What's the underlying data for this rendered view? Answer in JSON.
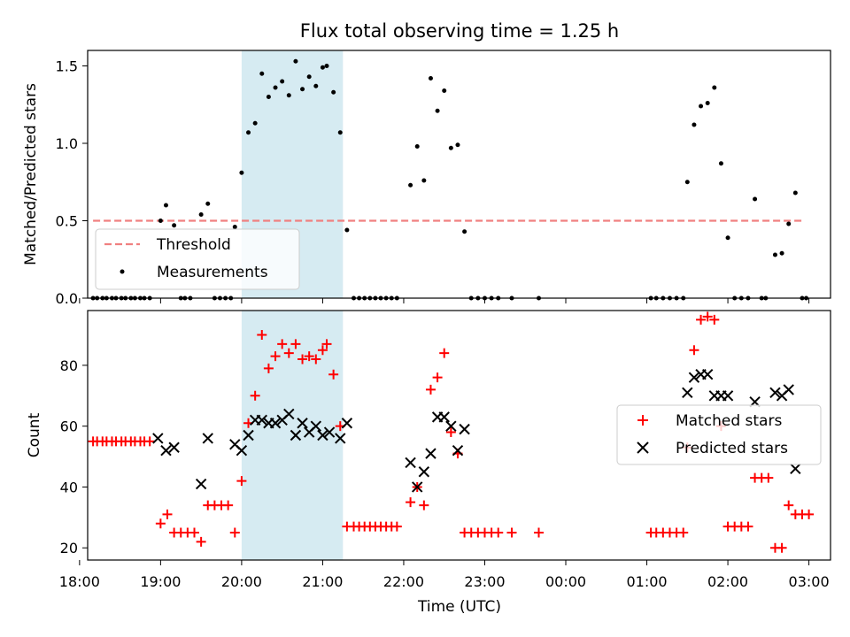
{
  "chart_data": [
    {
      "type": "scatter",
      "title": "Flux total observing time = 1.25 h",
      "ylabel": "Matched/Predicted stars",
      "xlabel": "",
      "x_unit": "time (UTC)",
      "xlim": [
        "18:06",
        "03:16"
      ],
      "ylim": [
        0,
        1.6
      ],
      "yticks": [
        "0.0",
        "0.5",
        "1.0",
        "1.5"
      ],
      "highlight_span": [
        "20:00",
        "21:15"
      ],
      "threshold": {
        "name": "Threshold",
        "value": 0.5,
        "from": "18:10",
        "to": "02:57",
        "style": "dashed",
        "color": "#f08080"
      },
      "legend": {
        "position": "lower-left"
      },
      "series": [
        {
          "name": "Measurements",
          "color": "#000000",
          "marker": "dot",
          "points": [
            [
              "18:10",
              0
            ],
            [
              "18:13",
              0
            ],
            [
              "18:17",
              0
            ],
            [
              "18:20",
              0
            ],
            [
              "18:24",
              0
            ],
            [
              "18:27",
              0
            ],
            [
              "18:31",
              0
            ],
            [
              "18:34",
              0
            ],
            [
              "18:38",
              0
            ],
            [
              "18:41",
              0
            ],
            [
              "18:45",
              0
            ],
            [
              "18:48",
              0
            ],
            [
              "18:52",
              0
            ],
            [
              "19:00",
              0.5
            ],
            [
              "19:04",
              0.6
            ],
            [
              "19:10",
              0.47
            ],
            [
              "19:15",
              0
            ],
            [
              "19:18",
              0
            ],
            [
              "19:22",
              0
            ],
            [
              "19:30",
              0.54
            ],
            [
              "19:35",
              0.61
            ],
            [
              "19:40",
              0
            ],
            [
              "19:44",
              0
            ],
            [
              "19:48",
              0
            ],
            [
              "19:52",
              0
            ],
            [
              "19:55",
              0.46
            ],
            [
              "20:00",
              0.81
            ],
            [
              "20:05",
              1.07
            ],
            [
              "20:10",
              1.13
            ],
            [
              "20:15",
              1.45
            ],
            [
              "20:20",
              1.3
            ],
            [
              "20:25",
              1.36
            ],
            [
              "20:30",
              1.4
            ],
            [
              "20:35",
              1.31
            ],
            [
              "20:40",
              1.53
            ],
            [
              "20:45",
              1.35
            ],
            [
              "20:50",
              1.43
            ],
            [
              "20:55",
              1.37
            ],
            [
              "21:00",
              1.49
            ],
            [
              "21:03",
              1.5
            ],
            [
              "21:08",
              1.33
            ],
            [
              "21:13",
              1.07
            ],
            [
              "21:18",
              0.44
            ],
            [
              "21:23",
              0
            ],
            [
              "21:27",
              0
            ],
            [
              "21:31",
              0
            ],
            [
              "21:35",
              0
            ],
            [
              "21:39",
              0
            ],
            [
              "21:43",
              0
            ],
            [
              "21:47",
              0
            ],
            [
              "21:51",
              0
            ],
            [
              "21:55",
              0
            ],
            [
              "22:05",
              0.73
            ],
            [
              "22:10",
              0.98
            ],
            [
              "22:15",
              0.76
            ],
            [
              "22:20",
              1.42
            ],
            [
              "22:25",
              1.21
            ],
            [
              "22:30",
              1.34
            ],
            [
              "22:35",
              0.97
            ],
            [
              "22:40",
              0.99
            ],
            [
              "22:45",
              0.43
            ],
            [
              "22:50",
              0
            ],
            [
              "22:55",
              0
            ],
            [
              "23:00",
              0
            ],
            [
              "23:05",
              0
            ],
            [
              "23:10",
              0
            ],
            [
              "23:20",
              0
            ],
            [
              "23:40",
              0
            ],
            [
              "01:03",
              0
            ],
            [
              "01:07",
              0
            ],
            [
              "01:12",
              0
            ],
            [
              "01:17",
              0
            ],
            [
              "01:22",
              0
            ],
            [
              "01:27",
              0
            ],
            [
              "01:30",
              0.75
            ],
            [
              "01:35",
              1.12
            ],
            [
              "01:40",
              1.24
            ],
            [
              "01:45",
              1.26
            ],
            [
              "01:50",
              1.36
            ],
            [
              "01:55",
              0.87
            ],
            [
              "02:00",
              0.39
            ],
            [
              "02:05",
              0
            ],
            [
              "02:10",
              0
            ],
            [
              "02:15",
              0
            ],
            [
              "02:20",
              0.64
            ],
            [
              "02:25",
              0
            ],
            [
              "02:28",
              0
            ],
            [
              "02:35",
              0.28
            ],
            [
              "02:40",
              0.29
            ],
            [
              "02:45",
              0.48
            ],
            [
              "02:50",
              0.68
            ],
            [
              "02:55",
              0
            ],
            [
              "02:58",
              0
            ]
          ]
        }
      ]
    },
    {
      "type": "scatter",
      "title": "",
      "ylabel": "Count",
      "xlabel": "Time (UTC)",
      "xlim": [
        "18:06",
        "03:16"
      ],
      "ylim": [
        16,
        98
      ],
      "yticks": [
        "20",
        "40",
        "60",
        "80"
      ],
      "xticks": [
        "18:00",
        "19:00",
        "20:00",
        "21:00",
        "22:00",
        "23:00",
        "00:00",
        "01:00",
        "02:00",
        "03:00"
      ],
      "highlight_span": [
        "20:00",
        "21:15"
      ],
      "legend": {
        "position": "right"
      },
      "series": [
        {
          "name": "Matched stars",
          "color": "#ff0000",
          "marker": "plus",
          "points": [
            [
              "18:10",
              55
            ],
            [
              "18:13",
              55
            ],
            [
              "18:17",
              55
            ],
            [
              "18:20",
              55
            ],
            [
              "18:24",
              55
            ],
            [
              "18:27",
              55
            ],
            [
              "18:31",
              55
            ],
            [
              "18:34",
              55
            ],
            [
              "18:38",
              55
            ],
            [
              "18:41",
              55
            ],
            [
              "18:45",
              55
            ],
            [
              "18:48",
              55
            ],
            [
              "18:52",
              55
            ],
            [
              "19:00",
              28
            ],
            [
              "19:05",
              31
            ],
            [
              "19:10",
              25
            ],
            [
              "19:15",
              25
            ],
            [
              "19:20",
              25
            ],
            [
              "19:25",
              25
            ],
            [
              "19:30",
              22
            ],
            [
              "19:35",
              34
            ],
            [
              "19:40",
              34
            ],
            [
              "19:45",
              34
            ],
            [
              "19:50",
              34
            ],
            [
              "19:55",
              25
            ],
            [
              "20:00",
              42
            ],
            [
              "20:05",
              61
            ],
            [
              "20:10",
              70
            ],
            [
              "20:15",
              90
            ],
            [
              "20:20",
              79
            ],
            [
              "20:25",
              83
            ],
            [
              "20:30",
              87
            ],
            [
              "20:35",
              84
            ],
            [
              "20:40",
              87
            ],
            [
              "20:45",
              82
            ],
            [
              "20:50",
              83
            ],
            [
              "20:55",
              82
            ],
            [
              "21:00",
              85
            ],
            [
              "21:03",
              87
            ],
            [
              "21:08",
              77
            ],
            [
              "21:13",
              60
            ],
            [
              "21:18",
              27
            ],
            [
              "21:23",
              27
            ],
            [
              "21:27",
              27
            ],
            [
              "21:31",
              27
            ],
            [
              "21:35",
              27
            ],
            [
              "21:39",
              27
            ],
            [
              "21:43",
              27
            ],
            [
              "21:47",
              27
            ],
            [
              "21:51",
              27
            ],
            [
              "21:55",
              27
            ],
            [
              "22:05",
              35
            ],
            [
              "22:10",
              40
            ],
            [
              "22:15",
              34
            ],
            [
              "22:20",
              72
            ],
            [
              "22:25",
              76
            ],
            [
              "22:30",
              84
            ],
            [
              "22:35",
              58
            ],
            [
              "22:40",
              51
            ],
            [
              "22:45",
              25
            ],
            [
              "22:50",
              25
            ],
            [
              "22:55",
              25
            ],
            [
              "23:00",
              25
            ],
            [
              "23:05",
              25
            ],
            [
              "23:10",
              25
            ],
            [
              "23:20",
              25
            ],
            [
              "23:40",
              25
            ],
            [
              "01:03",
              25
            ],
            [
              "01:07",
              25
            ],
            [
              "01:12",
              25
            ],
            [
              "01:17",
              25
            ],
            [
              "01:22",
              25
            ],
            [
              "01:27",
              25
            ],
            [
              "01:30",
              53
            ],
            [
              "01:35",
              85
            ],
            [
              "01:40",
              95
            ],
            [
              "01:45",
              96
            ],
            [
              "01:50",
              95
            ],
            [
              "01:55",
              60
            ],
            [
              "02:00",
              27
            ],
            [
              "02:05",
              27
            ],
            [
              "02:10",
              27
            ],
            [
              "02:15",
              27
            ],
            [
              "02:20",
              43
            ],
            [
              "02:25",
              43
            ],
            [
              "02:30",
              43
            ],
            [
              "02:35",
              20
            ],
            [
              "02:40",
              20
            ],
            [
              "02:45",
              34
            ],
            [
              "02:50",
              31
            ],
            [
              "02:55",
              31
            ],
            [
              "03:00",
              31
            ]
          ]
        },
        {
          "name": "Predicted stars",
          "color": "#000000",
          "marker": "x",
          "points": [
            [
              "18:58",
              56
            ],
            [
              "19:04",
              52
            ],
            [
              "19:10",
              53
            ],
            [
              "19:30",
              41
            ],
            [
              "19:35",
              56
            ],
            [
              "19:55",
              54
            ],
            [
              "20:00",
              52
            ],
            [
              "20:05",
              57
            ],
            [
              "20:10",
              62
            ],
            [
              "20:15",
              62
            ],
            [
              "20:20",
              61
            ],
            [
              "20:25",
              61
            ],
            [
              "20:30",
              62
            ],
            [
              "20:35",
              64
            ],
            [
              "20:40",
              57
            ],
            [
              "20:45",
              61
            ],
            [
              "20:50",
              58
            ],
            [
              "20:55",
              60
            ],
            [
              "21:00",
              57
            ],
            [
              "21:05",
              58
            ],
            [
              "21:13",
              56
            ],
            [
              "21:18",
              61
            ],
            [
              "22:05",
              48
            ],
            [
              "22:10",
              40
            ],
            [
              "22:15",
              45
            ],
            [
              "22:20",
              51
            ],
            [
              "22:25",
              63
            ],
            [
              "22:30",
              63
            ],
            [
              "22:35",
              60
            ],
            [
              "22:40",
              52
            ],
            [
              "22:45",
              59
            ],
            [
              "01:30",
              71
            ],
            [
              "01:35",
              76
            ],
            [
              "01:40",
              77
            ],
            [
              "01:45",
              77
            ],
            [
              "01:50",
              70
            ],
            [
              "01:55",
              70
            ],
            [
              "02:00",
              70
            ],
            [
              "02:20",
              68
            ],
            [
              "02:35",
              71
            ],
            [
              "02:40",
              70
            ],
            [
              "02:45",
              72
            ],
            [
              "02:50",
              46
            ]
          ]
        }
      ]
    }
  ]
}
